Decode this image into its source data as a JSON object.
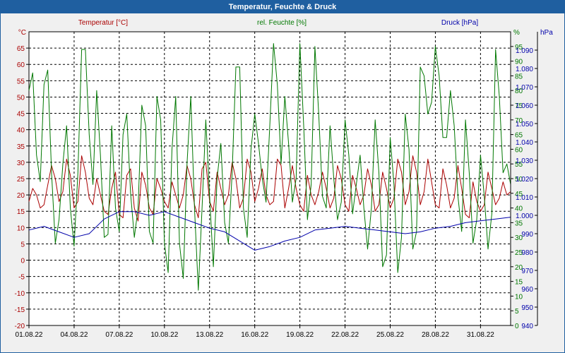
{
  "window": {
    "title": "Temperatur, Feuchte & Druck"
  },
  "chart_data": {
    "type": "line",
    "title": "Temperatur, Feuchte & Druck",
    "grid": true,
    "x_ticks": [
      "01.08.22",
      "04.08.22",
      "07.08.22",
      "10.08.22",
      "13.08.22",
      "16.08.22",
      "19.08.22",
      "22.08.22",
      "25.08.22",
      "28.08.22",
      "31.08.22"
    ],
    "x_range_days": [
      0,
      32
    ],
    "axes": {
      "temperature": {
        "label": "Temperatur [°C]",
        "unit": "°C",
        "range": [
          -20,
          70
        ],
        "ticks": [
          -20,
          -15,
          -10,
          -5,
          0,
          5,
          10,
          15,
          20,
          25,
          30,
          35,
          40,
          45,
          50,
          55,
          60,
          65
        ],
        "color": "#aa0000"
      },
      "humidity": {
        "label": "rel. Feuchte [%]",
        "unit": "%",
        "range": [
          0,
          100
        ],
        "ticks": [
          0,
          5,
          10,
          15,
          20,
          25,
          30,
          35,
          40,
          45,
          50,
          55,
          60,
          65,
          70,
          75,
          80,
          85,
          90,
          95
        ],
        "color": "#007700"
      },
      "pressure": {
        "label": "Druck [hPa]",
        "unit": "hPa",
        "range": [
          940,
          1100
        ],
        "ticks": [
          "940",
          "950",
          "960",
          "970",
          "980",
          "990",
          "1.000",
          "1.010",
          "1.020",
          "1.030",
          "1.040",
          "1.050",
          "1.060",
          "1.070",
          "1.080",
          "1.090"
        ],
        "color": "#0000aa"
      }
    },
    "series": [
      {
        "name": "Temperatur [°C]",
        "axis": "temperature",
        "color": "#aa0000",
        "x": [
          0,
          0.25,
          0.5,
          0.75,
          1,
          1.25,
          1.5,
          1.75,
          2,
          2.25,
          2.5,
          2.75,
          3,
          3.25,
          3.5,
          3.75,
          4,
          4.25,
          4.5,
          4.75,
          5,
          5.25,
          5.5,
          5.75,
          6,
          6.25,
          6.5,
          6.75,
          7,
          7.25,
          7.5,
          7.75,
          8,
          8.25,
          8.5,
          8.75,
          9,
          9.25,
          9.5,
          9.75,
          10,
          10.25,
          10.5,
          10.75,
          11,
          11.25,
          11.5,
          11.75,
          12,
          12.25,
          12.5,
          12.75,
          13,
          13.25,
          13.5,
          13.75,
          14,
          14.25,
          14.5,
          14.75,
          15,
          15.25,
          15.5,
          15.75,
          16,
          16.25,
          16.5,
          16.75,
          17,
          17.25,
          17.5,
          17.75,
          18,
          18.25,
          18.5,
          18.75,
          19,
          19.25,
          19.5,
          19.75,
          20,
          20.25,
          20.5,
          20.75,
          21,
          21.25,
          21.5,
          21.75,
          22,
          22.25,
          22.5,
          22.75,
          23,
          23.25,
          23.5,
          23.75,
          24,
          24.25,
          24.5,
          24.75,
          25,
          25.25,
          25.5,
          25.75,
          26,
          26.25,
          26.5,
          26.75,
          27,
          27.25,
          27.5,
          27.75,
          28,
          28.25,
          28.5,
          28.75,
          29,
          29.25,
          29.5,
          29.75,
          30,
          30.25,
          30.5,
          30.75,
          31,
          31.25,
          31.5,
          31.75,
          32
        ],
        "values": [
          18,
          22,
          20,
          16,
          17,
          23,
          29,
          25,
          18,
          21,
          31,
          26,
          16,
          18,
          32,
          27,
          19,
          17,
          25,
          20,
          15,
          14,
          22,
          27,
          14,
          13,
          26,
          28,
          16,
          12,
          27,
          23,
          16,
          14,
          25,
          22,
          18,
          16,
          24,
          20,
          16,
          20,
          29,
          25,
          17,
          13,
          28,
          30,
          18,
          15,
          27,
          22,
          17,
          20,
          30,
          25,
          16,
          19,
          31,
          27,
          18,
          22,
          28,
          20,
          17,
          18,
          31,
          29,
          16,
          22,
          29,
          22,
          17,
          15,
          26,
          20,
          17,
          21,
          27,
          22,
          16,
          19,
          29,
          25,
          17,
          15,
          26,
          22,
          17,
          20,
          28,
          23,
          15,
          17,
          27,
          22,
          16,
          19,
          31,
          27,
          17,
          21,
          32,
          27,
          17,
          21,
          31,
          24,
          17,
          16,
          28,
          23,
          16,
          19,
          29,
          22,
          14,
          13,
          24,
          18,
          15,
          17,
          27,
          22,
          17,
          19,
          24,
          20,
          21
        ]
      },
      {
        "name": "rel. Feuchte [%]",
        "axis": "humidity",
        "color": "#007700",
        "x": [
          0,
          0.25,
          0.5,
          0.75,
          1,
          1.25,
          1.5,
          1.75,
          2,
          2.25,
          2.5,
          2.75,
          3,
          3.25,
          3.5,
          3.75,
          4,
          4.25,
          4.5,
          4.75,
          5,
          5.25,
          5.5,
          5.75,
          6,
          6.25,
          6.5,
          6.75,
          7,
          7.25,
          7.5,
          7.75,
          8,
          8.25,
          8.5,
          8.75,
          9,
          9.25,
          9.5,
          9.75,
          10,
          10.25,
          10.5,
          10.75,
          11,
          11.25,
          11.5,
          11.75,
          12,
          12.25,
          12.5,
          12.75,
          13,
          13.25,
          13.5,
          13.75,
          14,
          14.25,
          14.5,
          14.75,
          15,
          15.25,
          15.5,
          15.75,
          16,
          16.25,
          16.5,
          16.75,
          17,
          17.25,
          17.5,
          17.75,
          18,
          18.25,
          18.5,
          18.75,
          19,
          19.25,
          19.5,
          19.75,
          20,
          20.25,
          20.5,
          20.75,
          21,
          21.25,
          21.5,
          21.75,
          22,
          22.25,
          22.5,
          22.75,
          23,
          23.25,
          23.5,
          23.75,
          24,
          24.25,
          24.5,
          24.75,
          25,
          25.25,
          25.5,
          25.75,
          26,
          26.25,
          26.5,
          26.75,
          27,
          27.25,
          27.5,
          27.75,
          28,
          28.25,
          28.5,
          28.75,
          29,
          29.25,
          29.5,
          29.75,
          30,
          30.25,
          30.5,
          30.75,
          31,
          31.25,
          31.5,
          31.75,
          32
        ],
        "values": [
          80,
          86,
          58,
          49,
          82,
          87,
          52,
          28,
          36,
          55,
          68,
          40,
          27,
          52,
          94,
          94,
          65,
          48,
          80,
          58,
          30,
          31,
          68,
          40,
          32,
          65,
          72,
          45,
          30,
          40,
          75,
          68,
          32,
          28,
          78,
          70,
          28,
          18,
          60,
          78,
          28,
          16,
          55,
          78,
          40,
          12,
          40,
          70,
          44,
          20,
          50,
          62,
          35,
          28,
          52,
          88,
          88,
          40,
          30,
          60,
          72,
          62,
          50,
          42,
          68,
          96,
          82,
          55,
          78,
          62,
          42,
          50,
          96,
          68,
          36,
          48,
          95,
          72,
          44,
          40,
          68,
          50,
          36,
          42,
          70,
          58,
          38,
          48,
          58,
          40,
          26,
          40,
          70,
          52,
          20,
          24,
          64,
          48,
          18,
          30,
          72,
          60,
          26,
          32,
          88,
          85,
          72,
          76,
          95,
          85,
          64,
          64,
          80,
          68,
          44,
          32,
          70,
          52,
          28,
          36,
          58,
          44,
          26,
          38,
          94,
          78,
          52,
          55,
          48
        ]
      },
      {
        "name": "Druck [hPa]",
        "axis": "pressure",
        "color": "#0000aa",
        "x": [
          0,
          1,
          2,
          3,
          4,
          5,
          6,
          7,
          8,
          9,
          10,
          11,
          12,
          13,
          14,
          15,
          16,
          17,
          18,
          19,
          20,
          21,
          22,
          23,
          24,
          25,
          26,
          27,
          28,
          29,
          30,
          31,
          32
        ],
        "values": [
          992,
          994,
          991,
          988,
          990,
          998,
          1002,
          1002,
          1000,
          1002,
          999,
          996,
          993,
          991,
          986,
          981,
          983,
          986,
          988,
          992,
          993,
          994,
          993,
          992,
          991,
          990,
          991,
          993,
          994,
          996,
          997,
          998,
          999
        ]
      }
    ]
  }
}
